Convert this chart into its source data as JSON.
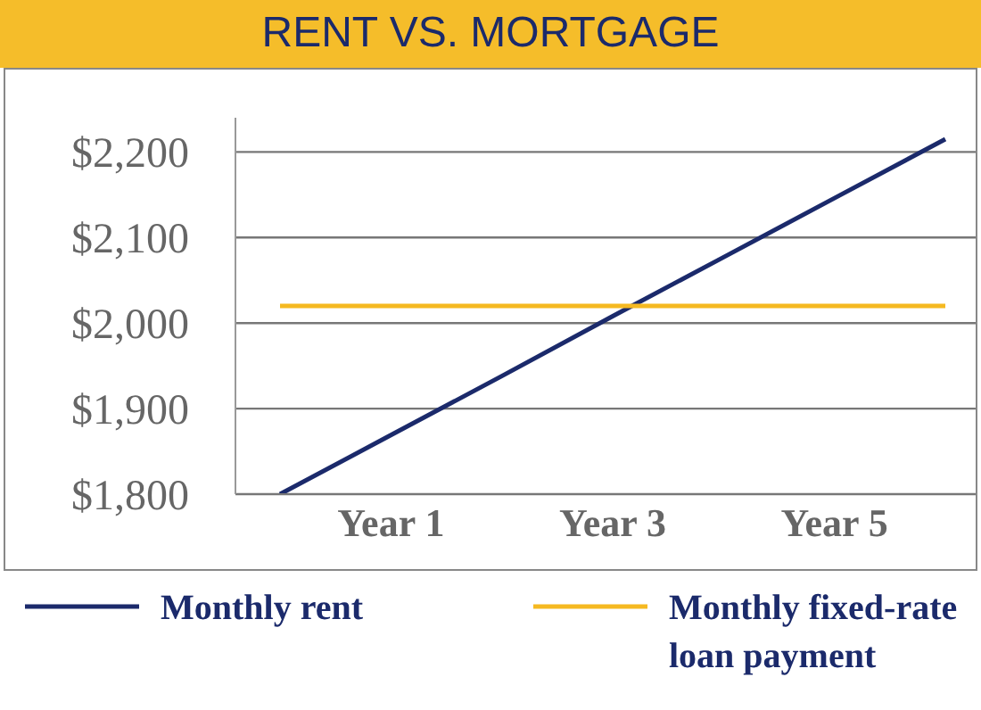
{
  "chart_data": {
    "type": "line",
    "title": "RENT VS. MORTGAGE",
    "categories": [
      null,
      "Year 1",
      null,
      "Year 3",
      null,
      "Year 5",
      null
    ],
    "ylim": [
      1800,
      2240
    ],
    "yticks": [
      {
        "value": 1800,
        "label": "$1,800"
      },
      {
        "value": 1900,
        "label": "$1,900"
      },
      {
        "value": 2000,
        "label": "$2,000"
      },
      {
        "value": 2100,
        "label": "$2,100"
      },
      {
        "value": 2200,
        "label": "$2,200"
      }
    ],
    "series": [
      {
        "name": "Monthly rent",
        "color": "#1b2a6b",
        "values": [
          1800,
          1869,
          1938,
          2008,
          2077,
          2146,
          2215
        ]
      },
      {
        "name": "Monthly fixed-rate loan payment",
        "color": "#f5b921",
        "values": [
          2020,
          2020,
          2020,
          2020,
          2020,
          2020,
          2020
        ]
      }
    ],
    "grid": "y",
    "legend": "bottom",
    "marker": "none",
    "line_style": "solid"
  }
}
